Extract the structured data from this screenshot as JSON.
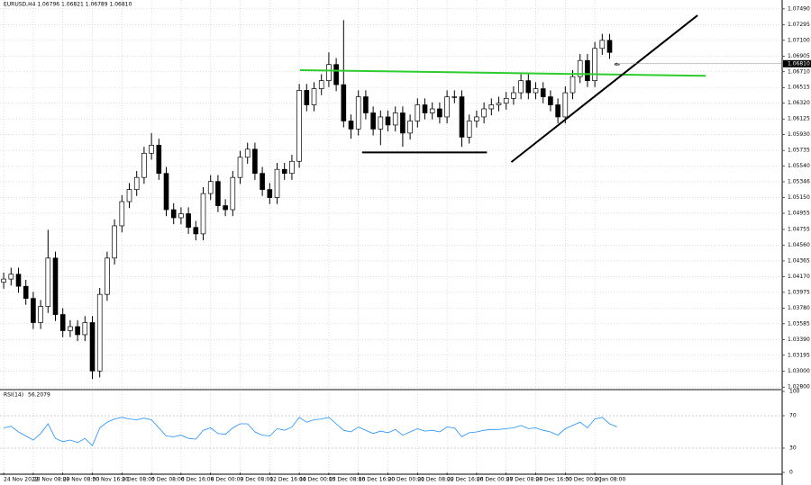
{
  "chart_data": {
    "type": "candlestick",
    "title": "EURUSD,H4  1.06796 1.06821 1.06789 1.06810",
    "xlim": [
      -0.5,
      105.35
    ],
    "ylim": [
      1.0278,
      1.076
    ],
    "yticks": [
      {
        "value": 1.0749,
        "label": "1.07490"
      },
      {
        "value": 1.07295,
        "label": "1.07295"
      },
      {
        "value": 1.071,
        "label": "1.07100"
      },
      {
        "value": 1.06905,
        "label": "1.06905"
      },
      {
        "value": 1.0671,
        "label": "1.06710"
      },
      {
        "value": 1.06515,
        "label": "1.06515"
      },
      {
        "value": 1.0632,
        "label": "1.06320"
      },
      {
        "value": 1.06125,
        "label": "1.06125"
      },
      {
        "value": 1.0593,
        "label": "1.05930"
      },
      {
        "value": 1.05735,
        "label": "1.05735"
      },
      {
        "value": 1.0554,
        "label": "1.05540"
      },
      {
        "value": 1.05346,
        "label": "1.05346"
      },
      {
        "value": 1.0515,
        "label": "1.05150"
      },
      {
        "value": 1.04955,
        "label": "1.04955"
      },
      {
        "value": 1.04755,
        "label": "1.04755"
      },
      {
        "value": 1.0456,
        "label": "1.04560"
      },
      {
        "value": 1.04365,
        "label": "1.04365"
      },
      {
        "value": 1.0417,
        "label": "1.04170"
      },
      {
        "value": 1.03975,
        "label": "1.03975"
      },
      {
        "value": 1.0378,
        "label": "1.03780"
      },
      {
        "value": 1.03585,
        "label": "1.03585"
      },
      {
        "value": 1.0339,
        "label": "1.03390"
      },
      {
        "value": 1.03195,
        "label": "1.03195"
      },
      {
        "value": 1.03,
        "label": "1.03000"
      },
      {
        "value": 1.028,
        "label": "1.02800"
      }
    ],
    "xticks": [
      {
        "value": 0,
        "label": "24 Nov 2022"
      },
      {
        "value": 4,
        "label": "28 Nov 08:00"
      },
      {
        "value": 8,
        "label": "29 Nov 08:00"
      },
      {
        "value": 12,
        "label": "30 Nov 16:00"
      },
      {
        "value": 16,
        "label": "2 Dec 08:00"
      },
      {
        "value": 20,
        "label": "5 Dec 08:00"
      },
      {
        "value": 24,
        "label": "6 Dec 16:00"
      },
      {
        "value": 28,
        "label": "8 Dec 00:00"
      },
      {
        "value": 32,
        "label": "9 Dec 08:00"
      },
      {
        "value": 36,
        "label": "12 Dec 16:00"
      },
      {
        "value": 40,
        "label": "14 Dec 00:00"
      },
      {
        "value": 44,
        "label": "15 Dec 08:00"
      },
      {
        "value": 48,
        "label": "16 Dec 16:00"
      },
      {
        "value": 52,
        "label": "20 Dec 00:00"
      },
      {
        "value": 56,
        "label": "21 Dec 08:00"
      },
      {
        "value": 60,
        "label": "22 Dec 16:00"
      },
      {
        "value": 64,
        "label": "26 Dec 00:00"
      },
      {
        "value": 68,
        "label": "27 Dec 08:00"
      },
      {
        "value": 72,
        "label": "28 Dec 16:00"
      },
      {
        "value": 76,
        "label": "30 Dec 00:00"
      },
      {
        "value": 80,
        "label": "2 Jan 08:00"
      }
    ],
    "grid": true,
    "up_color": "#ffffff",
    "down_color": "#000000",
    "open": [
      1.041,
      1.0414,
      1.042,
      1.0405,
      1.039,
      1.036,
      1.038,
      1.044,
      1.037,
      1.035,
      1.0355,
      1.0345,
      1.036,
      1.03,
      1.0395,
      1.044,
      1.048,
      1.051,
      1.0525,
      1.054,
      1.057,
      1.058,
      1.0545,
      1.05,
      1.049,
      1.0495,
      1.0478,
      1.047,
      1.052,
      1.0535,
      1.0505,
      1.05,
      1.054,
      1.0565,
      1.0575,
      1.0545,
      1.0525,
      1.0515,
      1.055,
      1.0545,
      1.056,
      1.0648,
      1.063,
      1.065,
      1.066,
      1.068,
      1.0655,
      1.061,
      1.06,
      1.064,
      1.062,
      1.06,
      1.0615,
      1.0605,
      1.062,
      1.0595,
      1.061,
      1.063,
      1.062,
      1.0625,
      1.0615,
      1.064,
      1.064,
      1.059,
      1.061,
      1.0615,
      1.0625,
      1.063,
      1.0632,
      1.0638,
      1.0645,
      1.066,
      1.0645,
      1.065,
      1.064,
      1.063,
      1.0615,
      1.0645,
      1.0665,
      1.0685,
      1.066,
      1.07,
      1.071,
      1.06796
    ],
    "high": [
      1.0422,
      1.0428,
      1.0428,
      1.0413,
      1.0398,
      1.0388,
      1.0475,
      1.0448,
      1.0378,
      1.0363,
      1.0363,
      1.0368,
      1.0368,
      1.0403,
      1.0448,
      1.0488,
      1.0518,
      1.0533,
      1.0548,
      1.0578,
      1.0595,
      1.0588,
      1.0553,
      1.0508,
      1.0503,
      1.0503,
      1.0486,
      1.0528,
      1.0543,
      1.0543,
      1.0513,
      1.0548,
      1.0573,
      1.0583,
      1.0583,
      1.0553,
      1.0533,
      1.0558,
      1.0558,
      1.0568,
      1.0656,
      1.0656,
      1.0658,
      1.0668,
      1.0695,
      1.0688,
      1.0735,
      1.0618,
      1.0648,
      1.0648,
      1.0628,
      1.0623,
      1.0623,
      1.0628,
      1.0628,
      1.0618,
      1.0638,
      1.0638,
      1.0633,
      1.0633,
      1.0648,
      1.0648,
      1.0648,
      1.0618,
      1.0623,
      1.0633,
      1.0638,
      1.064,
      1.0646,
      1.0653,
      1.0668,
      1.0668,
      1.0658,
      1.0658,
      1.0648,
      1.0638,
      1.0653,
      1.0673,
      1.0693,
      1.0693,
      1.0708,
      1.0718,
      1.0718,
      1.06821
    ],
    "low": [
      1.0402,
      1.0406,
      1.0397,
      1.0382,
      1.0352,
      1.0352,
      1.0372,
      1.0362,
      1.0342,
      1.0342,
      1.0337,
      1.0337,
      1.029,
      1.0292,
      1.0387,
      1.0432,
      1.0472,
      1.0502,
      1.0517,
      1.0532,
      1.0562,
      1.0537,
      1.0492,
      1.0482,
      1.0482,
      1.047,
      1.0462,
      1.0462,
      1.0512,
      1.0497,
      1.0492,
      1.0492,
      1.0532,
      1.0557,
      1.0537,
      1.0517,
      1.0507,
      1.0507,
      1.0537,
      1.0537,
      1.0552,
      1.0622,
      1.0622,
      1.0642,
      1.0652,
      1.0647,
      1.0602,
      1.0588,
      1.0592,
      1.0612,
      1.0592,
      1.058,
      1.0597,
      1.0597,
      1.0578,
      1.0587,
      1.0602,
      1.0612,
      1.0612,
      1.0607,
      1.0607,
      1.0632,
      1.0578,
      1.0582,
      1.0602,
      1.0607,
      1.0617,
      1.0622,
      1.0624,
      1.063,
      1.0637,
      1.0637,
      1.0637,
      1.0632,
      1.0622,
      1.0607,
      1.0607,
      1.0637,
      1.0657,
      1.0652,
      1.0652,
      1.0692,
      1.0687,
      1.06789
    ],
    "close": [
      1.0414,
      1.042,
      1.0405,
      1.039,
      1.036,
      1.038,
      1.044,
      1.037,
      1.035,
      1.0355,
      1.0345,
      1.036,
      1.03,
      1.0395,
      1.044,
      1.048,
      1.051,
      1.0525,
      1.054,
      1.057,
      1.058,
      1.0545,
      1.05,
      1.049,
      1.0495,
      1.0478,
      1.047,
      1.052,
      1.0535,
      1.0505,
      1.05,
      1.054,
      1.0565,
      1.0575,
      1.0545,
      1.0525,
      1.0515,
      1.055,
      1.0545,
      1.056,
      1.0648,
      1.063,
      1.065,
      1.066,
      1.068,
      1.0655,
      1.061,
      1.06,
      1.064,
      1.062,
      1.06,
      1.0615,
      1.0605,
      1.062,
      1.0595,
      1.061,
      1.063,
      1.062,
      1.0625,
      1.0615,
      1.064,
      1.064,
      1.059,
      1.061,
      1.0615,
      1.0625,
      1.063,
      1.0632,
      1.0638,
      1.0645,
      1.066,
      1.0645,
      1.065,
      1.064,
      1.063,
      1.0615,
      1.0645,
      1.0665,
      1.0685,
      1.066,
      1.07,
      1.071,
      1.0695,
      1.0681
    ],
    "current_price": {
      "value": 1.0681,
      "label": "1.06810"
    },
    "trend_lines": [
      {
        "color": "#2ecc2e",
        "x": [
          40.1,
          95
        ],
        "y": [
          1.0673,
          1.0666
        ]
      },
      {
        "color": "#000000",
        "x": [
          48.5,
          65.4
        ],
        "y": [
          1.0571,
          1.0571
        ]
      },
      {
        "color": "#000000",
        "x": [
          68.7,
          93.9
        ],
        "y": [
          1.0559,
          1.0741
        ]
      }
    ],
    "rsi": {
      "name": "RSI(14)",
      "color": "#1e90ff",
      "ylim": [
        0,
        100
      ],
      "yticks": [
        100,
        70,
        30,
        0
      ],
      "levels": [
        70,
        30
      ],
      "values": [
        55,
        57,
        50,
        45,
        40,
        48,
        60,
        42,
        38,
        40,
        37,
        42,
        33,
        55,
        62,
        66,
        68,
        66,
        65,
        67,
        65,
        55,
        45,
        44,
        46,
        42,
        41,
        52,
        55,
        48,
        47,
        55,
        60,
        60,
        50,
        46,
        45,
        54,
        52,
        56,
        68,
        62,
        65,
        66,
        68,
        60,
        52,
        50,
        56,
        52,
        48,
        51,
        49,
        53,
        46,
        50,
        54,
        51,
        52,
        50,
        56,
        55,
        44,
        49,
        50,
        52,
        53,
        53,
        54,
        55,
        58,
        54,
        55,
        52,
        50,
        46,
        54,
        58,
        62,
        55,
        66,
        68,
        60,
        56.2079
      ]
    }
  }
}
